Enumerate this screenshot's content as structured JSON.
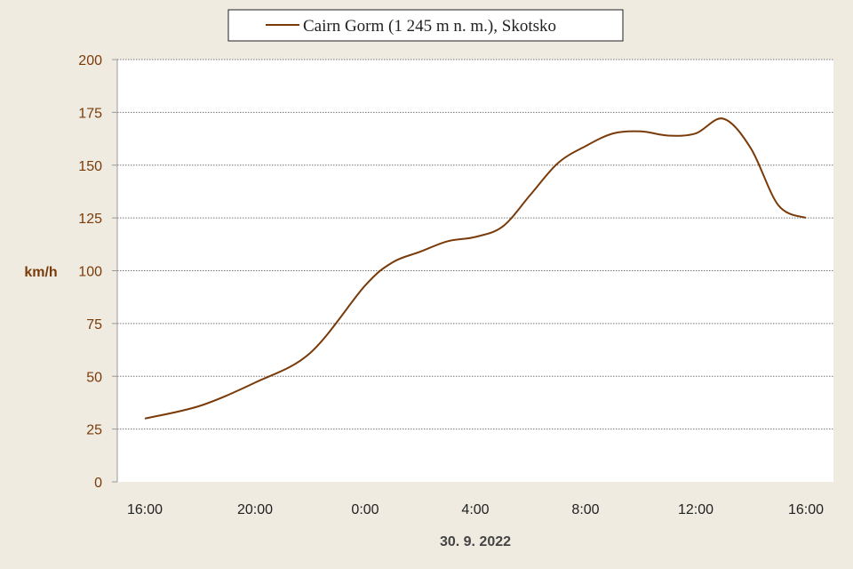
{
  "chart_data": {
    "type": "line",
    "xlabel": "30. 9. 2022",
    "ylabel": "km/h",
    "ylim": [
      0,
      200
    ],
    "y_ticks": [
      0,
      25,
      50,
      75,
      100,
      125,
      150,
      175,
      200
    ],
    "x_ticks": [
      "16:00",
      "20:00",
      "0:00",
      "4:00",
      "8:00",
      "12:00",
      "16:00"
    ],
    "x_range_hours": [
      0,
      24
    ],
    "grid": true,
    "legend_placement": "top",
    "series": [
      {
        "name": "Cairn Gorm (1 245 m n. m.), Skotsko",
        "color": "#7a3b0a",
        "x": [
          0,
          2,
          4,
          6,
          8,
          9,
          10,
          11,
          12,
          13,
          14,
          15,
          16,
          17,
          18,
          19,
          20,
          21,
          22,
          23,
          24
        ],
        "values": [
          30,
          36,
          47,
          61,
          93,
          104,
          109,
          114,
          116,
          121,
          136,
          151,
          159,
          165,
          166,
          164,
          165,
          172,
          158,
          131,
          125
        ]
      }
    ]
  }
}
